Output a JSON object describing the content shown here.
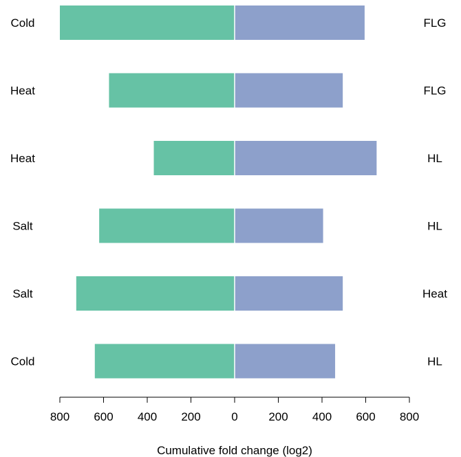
{
  "chart_data": {
    "type": "bar",
    "orientation": "horizontal-diverging",
    "xlabel": "Cumulative fold change (log2)",
    "xlim": [
      -800,
      800
    ],
    "x_ticks": [
      -800,
      -600,
      -400,
      -200,
      0,
      200,
      400,
      600,
      800
    ],
    "x_tick_labels": [
      "800",
      "600",
      "400",
      "200",
      "0",
      "200",
      "400",
      "600",
      "800"
    ],
    "left_categories": [
      "Cold",
      "Heat",
      "Heat",
      "Salt",
      "Salt",
      "Cold"
    ],
    "right_categories": [
      "FLG",
      "FLG",
      "HL",
      "HL",
      "Heat",
      "HL"
    ],
    "series": [
      {
        "side": "left",
        "color": "#66c2a5",
        "values": [
          800,
          575,
          370,
          620,
          725,
          640
        ]
      },
      {
        "side": "right",
        "color": "#8da0cb",
        "values": [
          595,
          495,
          650,
          405,
          495,
          460
        ]
      }
    ],
    "grid": false,
    "legend": "none"
  }
}
